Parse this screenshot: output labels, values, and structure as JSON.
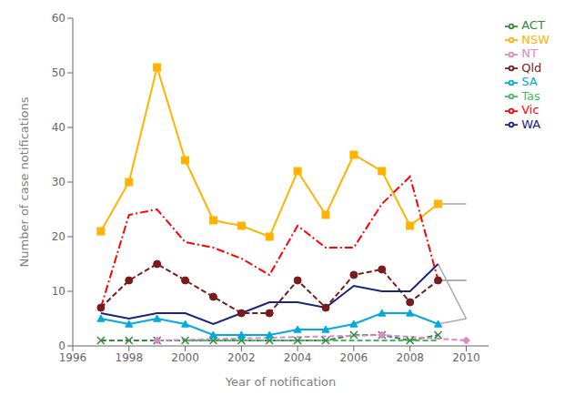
{
  "chart_data": {
    "type": "line",
    "x": [
      1997,
      1998,
      1999,
      2000,
      2001,
      2002,
      2003,
      2004,
      2005,
      2006,
      2007,
      2008,
      2009,
      2010
    ],
    "series": [
      {
        "color": "#AAAAAA",
        "line_style": "solid",
        "values": [
          null,
          null,
          null,
          null,
          null,
          null,
          null,
          null,
          null,
          null,
          null,
          null,
          26,
          26
        ]
      },
      {
        "color": "#AAAAAA",
        "line_style": "solid",
        "values": [
          null,
          null,
          null,
          null,
          null,
          null,
          null,
          null,
          null,
          null,
          null,
          null,
          12,
          12
        ]
      },
      {
        "color": "#AAAAAA",
        "line_style": "solid",
        "values": [
          null,
          null,
          null,
          null,
          null,
          null,
          null,
          null,
          null,
          null,
          null,
          null,
          15,
          5
        ]
      },
      {
        "color": "#AAAAAA",
        "line_style": "solid",
        "values": [
          null,
          null,
          null,
          null,
          null,
          null,
          null,
          null,
          null,
          null,
          null,
          null,
          12,
          12
        ]
      },
      {
        "color": "#AAAAAA",
        "line_style": "solid",
        "values": [
          null,
          null,
          null,
          null,
          null,
          null,
          null,
          null,
          null,
          null,
          null,
          null,
          4,
          5
        ]
      },
      {
        "name": "ACT",
        "color": "#2e8b3a",
        "line_style": "dashed",
        "marker": "x",
        "values": [
          1,
          1,
          1,
          1,
          1,
          1,
          1,
          1,
          1,
          2,
          2,
          1,
          2,
          null
        ]
      },
      {
        "name": "NSW",
        "color": "#FFB300",
        "line_style": "solid",
        "marker": "square",
        "values": [
          21,
          30,
          51,
          34,
          23,
          22,
          20,
          32,
          24,
          35,
          32,
          22,
          26,
          null
        ]
      },
      {
        "name": "NT",
        "color": "#dd88cc",
        "line_style": "dashed",
        "marker": "diamond",
        "values": [
          null,
          null,
          1,
          null,
          null,
          null,
          null,
          null,
          null,
          null,
          2,
          null,
          null,
          1
        ]
      },
      {
        "name": "Qld",
        "color": "#7b1a1a",
        "line_style": "dashed",
        "marker": "circle",
        "values": [
          7,
          12,
          15,
          12,
          9,
          6,
          6,
          12,
          7,
          13,
          14,
          8,
          12,
          null
        ]
      },
      {
        "name": "SA",
        "color": "#00AADD",
        "line_style": "solid",
        "marker": "triangle",
        "values": [
          5,
          4,
          5,
          4,
          2,
          2,
          2,
          3,
          3,
          4,
          6,
          6,
          4,
          null
        ]
      },
      {
        "name": "Tas",
        "color": "#44BB66",
        "line_style": "dashed",
        "values": [
          null,
          null,
          null,
          1,
          1,
          1,
          1,
          1,
          1,
          1,
          1,
          1,
          1,
          null
        ]
      },
      {
        "name": "Vic",
        "color": "#FF0000",
        "line_style": "dashdot",
        "values": [
          7,
          24,
          25,
          19,
          18,
          16,
          13,
          22,
          18,
          18,
          26,
          31,
          12,
          null
        ]
      },
      {
        "name": "WA",
        "color": "#1a237e",
        "line_style": "solid",
        "values": [
          6,
          5,
          6,
          6,
          4,
          6,
          8,
          8,
          7,
          11,
          10,
          10,
          15,
          null
        ]
      }
    ],
    "xlabel": "Year of notification",
    "ylabel": "Number of case notifications",
    "xlim": [
      1996,
      2010.8
    ],
    "ylim": [
      0,
      60
    ],
    "xticks": [
      1996,
      1998,
      2000,
      2002,
      2004,
      2006,
      2008,
      2010
    ],
    "yticks": [
      0,
      10,
      20,
      30,
      40,
      50,
      60
    ],
    "grid": false,
    "legend": "right"
  }
}
